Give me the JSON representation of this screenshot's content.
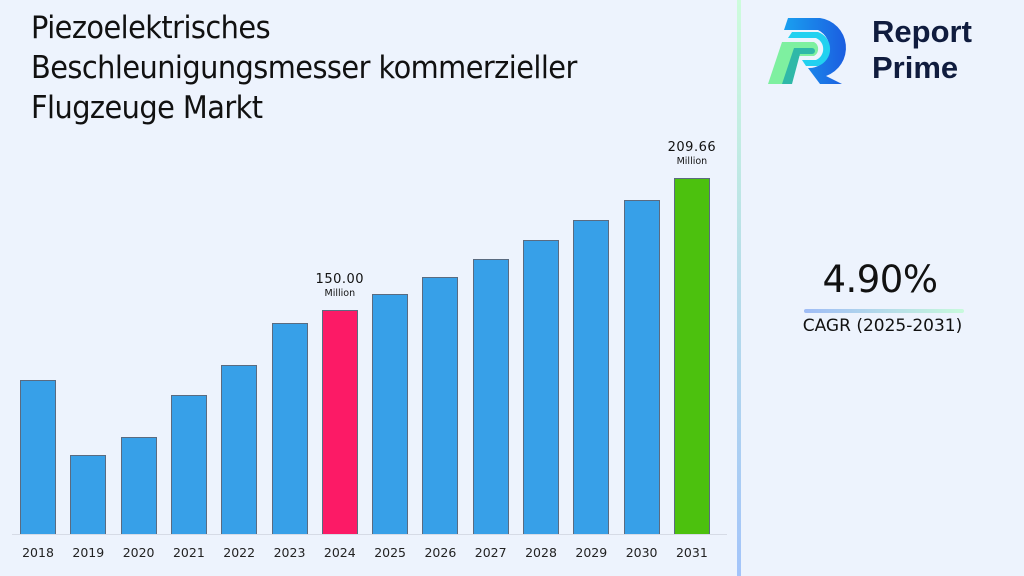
{
  "title": "Piezoelektrisches Beschleunigungsmesser kommerzieller Flugzeuge Markt",
  "title_lines": [
    "Piezoelektrisches",
    "Beschleunigungsmesser kommerzieller",
    "Flugzeuge Markt"
  ],
  "brand": {
    "line1": "Report",
    "line2": "Prime",
    "text_color": "#101c3e"
  },
  "cagr": {
    "value": "4.90%",
    "label": "CAGR (2025-2031)"
  },
  "highlights": {
    "2024": {
      "value": "150.00",
      "unit": "Million"
    },
    "2031": {
      "value": "209.66",
      "unit": "Million"
    }
  },
  "colors": {
    "default_bar": "#37a0e8",
    "highlight_2024": "#fc1a66",
    "highlight_2031": "#4cc10e",
    "background": "#edf3fd"
  },
  "chart_data": {
    "type": "bar",
    "title": "Piezoelektrisches Beschleunigungsmesser kommerzieller Flugzeuge Markt",
    "xlabel": "",
    "ylabel": "",
    "unit": "Million",
    "categories": [
      "2018",
      "2019",
      "2020",
      "2021",
      "2022",
      "2023",
      "2024",
      "2025",
      "2026",
      "2027",
      "2028",
      "2029",
      "2030",
      "2031"
    ],
    "values": [
      118.4,
      84.5,
      92.6,
      111.6,
      125.2,
      144.2,
      150.0,
      157.35,
      165.06,
      173.15,
      181.63,
      190.53,
      199.87,
      209.66
    ],
    "bar_colors": [
      "#37a0e8",
      "#37a0e8",
      "#37a0e8",
      "#37a0e8",
      "#37a0e8",
      "#37a0e8",
      "#fc1a66",
      "#37a0e8",
      "#37a0e8",
      "#37a0e8",
      "#37a0e8",
      "#37a0e8",
      "#37a0e8",
      "#4cc10e"
    ],
    "data_labels": [
      {
        "category": "2024",
        "text": "150.00 Million"
      },
      {
        "category": "2031",
        "text": "209.66 Million"
      }
    ],
    "annotations": [
      "CAGR (2025-2031): 4.90%"
    ],
    "grid": false,
    "y_axis_visible": false,
    "legend": "none"
  }
}
